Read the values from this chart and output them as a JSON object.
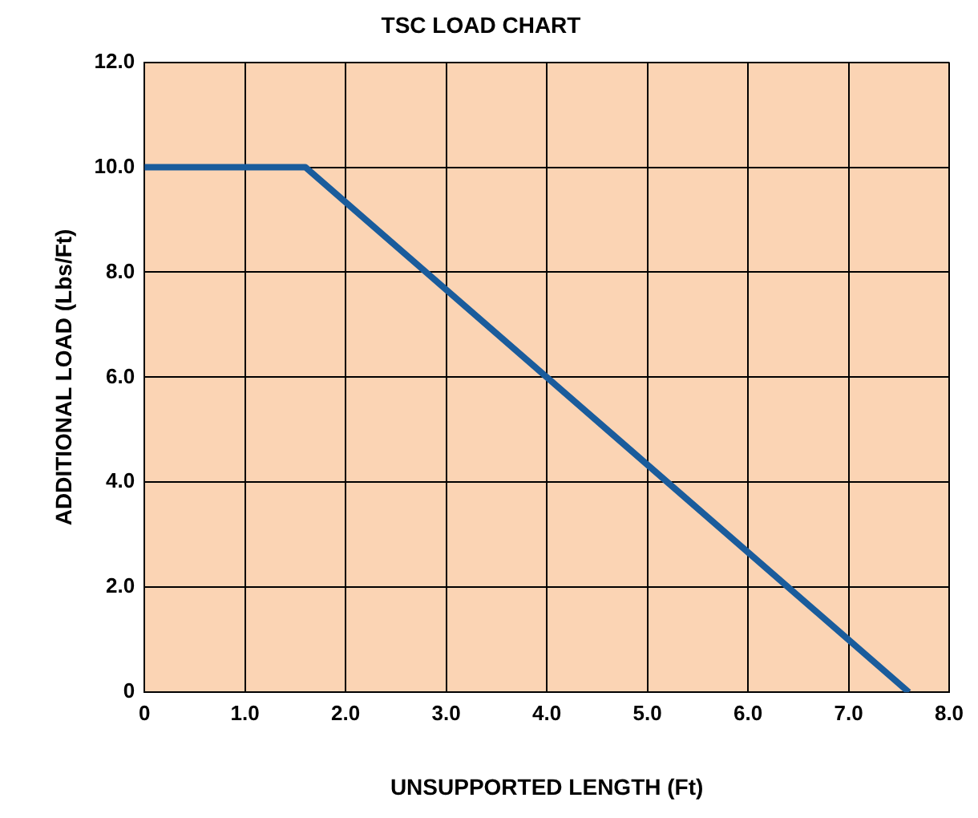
{
  "chart_data": {
    "type": "line",
    "title": "TSC LOAD CHART",
    "xlabel": "UNSUPPORTED LENGTH (Ft)",
    "ylabel": "ADDITIONAL LOAD (Lbs/Ft)",
    "x": [
      0,
      1.6,
      7.6
    ],
    "series": [
      {
        "color": "#1a5c9c",
        "values": [
          10,
          10,
          0
        ]
      }
    ],
    "xlim": [
      0,
      8
    ],
    "xticks": [
      0,
      {
        "value": 1,
        "label": "1.0"
      },
      {
        "value": 2,
        "label": "2.0"
      },
      {
        "value": 3,
        "label": "3.0"
      },
      {
        "value": 4,
        "label": "4.0"
      },
      {
        "value": 5,
        "label": "5.0"
      },
      {
        "value": 6,
        "label": "6.0"
      },
      {
        "value": 7,
        "label": "7.0"
      },
      {
        "value": 8,
        "label": "8.0"
      }
    ],
    "ylim": [
      0,
      12
    ],
    "yticks": [
      0,
      {
        "value": 2,
        "label": "2.0"
      },
      {
        "value": 4,
        "label": "4.0"
      },
      {
        "value": 6,
        "label": "6.0"
      },
      {
        "value": 8,
        "label": "8.0"
      },
      {
        "value": 10,
        "label": "10.0"
      },
      {
        "value": 12,
        "label": "12.0"
      }
    ],
    "grid": true,
    "legend": false,
    "marker": "none",
    "line_style": "solid"
  }
}
